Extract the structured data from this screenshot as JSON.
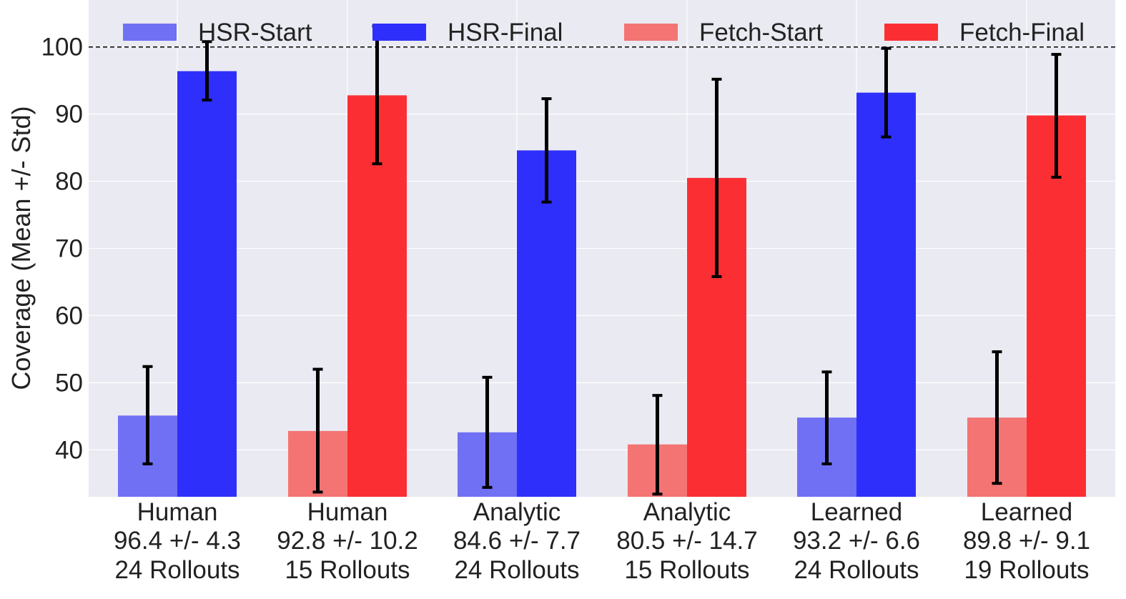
{
  "chart_data": {
    "type": "bar",
    "title": "",
    "xlabel": "",
    "ylabel": "Coverage (Mean +/- Std)",
    "ylim": [
      33,
      107
    ],
    "yticks": [
      40,
      50,
      60,
      70,
      80,
      90,
      100
    ],
    "reference_line": 100,
    "grid": true,
    "legend_position": "top",
    "colors": {
      "HSR-Start": "#7070f5",
      "HSR-Final": "#2f2ffb",
      "Fetch-Start": "#f47474",
      "Fetch-Final": "#fb2f33"
    },
    "series_order": [
      "HSR-Start",
      "HSR-Final",
      "Fetch-Start",
      "Fetch-Final"
    ],
    "groups": [
      {
        "label": [
          "Human",
          "96.4 +/- 4.3",
          "24 Rollouts"
        ],
        "bars": [
          {
            "series": "HSR-Start",
            "value": 45.1,
            "err_low": 37.9,
            "err_high": 52.4
          },
          {
            "series": "HSR-Final",
            "value": 96.4,
            "err_low": 92.1,
            "err_high": 100.8
          }
        ]
      },
      {
        "label": [
          "Human",
          "92.8 +/- 10.2",
          "15 Rollouts"
        ],
        "bars": [
          {
            "series": "Fetch-Start",
            "value": 42.8,
            "err_low": 33.7,
            "err_high": 52.0
          },
          {
            "series": "Fetch-Final",
            "value": 92.8,
            "err_low": 82.6,
            "err_high": 103.1
          }
        ]
      },
      {
        "label": [
          "Analytic",
          "84.6 +/- 7.7",
          "24 Rollouts"
        ],
        "bars": [
          {
            "series": "HSR-Start",
            "value": 42.6,
            "err_low": 34.4,
            "err_high": 50.8
          },
          {
            "series": "HSR-Final",
            "value": 84.6,
            "err_low": 76.9,
            "err_high": 92.3
          }
        ]
      },
      {
        "label": [
          "Analytic",
          "80.5 +/- 14.7",
          "15 Rollouts"
        ],
        "bars": [
          {
            "series": "Fetch-Start",
            "value": 40.8,
            "err_low": 33.4,
            "err_high": 48.1
          },
          {
            "series": "Fetch-Final",
            "value": 80.5,
            "err_low": 65.8,
            "err_high": 95.2
          }
        ]
      },
      {
        "label": [
          "Learned",
          "93.2 +/- 6.6",
          "24 Rollouts"
        ],
        "bars": [
          {
            "series": "HSR-Start",
            "value": 44.8,
            "err_low": 37.9,
            "err_high": 51.6
          },
          {
            "series": "HSR-Final",
            "value": 93.2,
            "err_low": 86.6,
            "err_high": 99.8
          }
        ]
      },
      {
        "label": [
          "Learned",
          "89.8 +/- 9.1",
          "19 Rollouts"
        ],
        "bars": [
          {
            "series": "Fetch-Start",
            "value": 44.8,
            "err_low": 35.0,
            "err_high": 54.6
          },
          {
            "series": "Fetch-Final",
            "value": 89.8,
            "err_low": 80.6,
            "err_high": 98.9
          }
        ]
      }
    ]
  }
}
